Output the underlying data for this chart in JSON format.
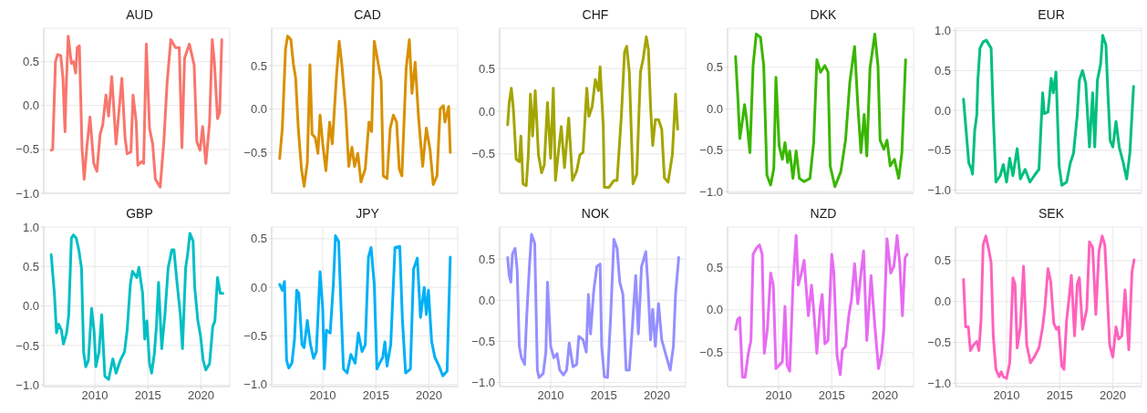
{
  "chart_data": [
    {
      "type": "line",
      "title": "AUD",
      "color": "#f8766d",
      "xlim": [
        2005.2,
        2022.7
      ],
      "xticks": [
        2010,
        2015,
        2020
      ],
      "ylim": [
        -1.0,
        0.88
      ],
      "yticks": [
        {
          "value": -1.0,
          "label": "−1.0"
        },
        {
          "value": -0.5,
          "label": "−0.5"
        },
        {
          "value": 0,
          "label": "0.0"
        },
        {
          "value": 0.5,
          "label": "0.5"
        }
      ],
      "grid": true,
      "tick_labels": "y",
      "x": [
        2005.9,
        2006.04,
        2006.3,
        2006.5,
        2006.8,
        2007.0,
        2007.2,
        2007.3,
        2007.5,
        2007.8,
        2008.0,
        2008.2,
        2008.35,
        2008.55,
        2008.8,
        2009.0,
        2009.25,
        2009.55,
        2009.9,
        2010.2,
        2010.5,
        2010.75,
        2011.05,
        2011.3,
        2011.6,
        2012.0,
        2012.55,
        2012.85,
        2013.05,
        2013.4,
        2013.6,
        2013.9,
        2014.05,
        2014.4,
        2014.6,
        2014.85,
        2015.15,
        2015.45,
        2015.7,
        2016.15,
        2016.5,
        2016.8,
        2017.15,
        2017.6,
        2017.95,
        2018.2,
        2018.45,
        2018.9,
        2019.35,
        2019.6,
        2019.9,
        2020.15,
        2020.45,
        2020.8,
        2021.05,
        2021.25,
        2021.55,
        2021.75,
        2021.95
      ],
      "values": [
        -0.51,
        -0.5,
        0.5,
        0.58,
        0.57,
        0.32,
        -0.3,
        0.17,
        0.79,
        0.48,
        0.5,
        0.37,
        0.66,
        0.68,
        -0.48,
        -0.84,
        -0.48,
        -0.13,
        -0.66,
        -0.75,
        -0.33,
        -0.22,
        0.12,
        -0.12,
        0.33,
        -0.44,
        0.31,
        -0.37,
        -0.55,
        -0.53,
        0.12,
        -0.19,
        -0.68,
        -0.64,
        -0.66,
        0.7,
        -0.26,
        -0.44,
        -0.84,
        -0.93,
        -0.41,
        0.25,
        0.75,
        0.66,
        0.66,
        -0.48,
        0.54,
        0.7,
        0.46,
        -0.41,
        -0.51,
        -0.24,
        -0.66,
        -0.19,
        0.75,
        0.5,
        -0.15,
        -0.08,
        0.75
      ]
    },
    {
      "type": "line",
      "title": "CAD",
      "color": "#d89000",
      "xlim": [
        2005.2,
        2022.7
      ],
      "xticks": [
        2010,
        2015,
        2020
      ],
      "ylim": [
        -0.97,
        0.93
      ],
      "yticks": [
        {
          "value": -0.5,
          "label": "−0.5"
        },
        {
          "value": 0,
          "label": "0.0"
        },
        {
          "value": 0.5,
          "label": "0.5"
        }
      ],
      "grid": true,
      "tick_labels": "y",
      "x": [
        2005.95,
        2006.2,
        2006.5,
        2006.7,
        2007.0,
        2007.25,
        2007.45,
        2007.7,
        2008.0,
        2008.25,
        2008.55,
        2008.8,
        2009.0,
        2009.3,
        2009.55,
        2009.75,
        2010.0,
        2010.3,
        2010.65,
        2010.9,
        2011.3,
        2011.55,
        2011.8,
        2012.15,
        2012.45,
        2012.75,
        2013.0,
        2013.3,
        2013.6,
        2014.0,
        2014.35,
        2014.6,
        2014.85,
        2015.2,
        2015.5,
        2015.7,
        2016.05,
        2016.35,
        2016.65,
        2016.95,
        2017.2,
        2017.45,
        2017.85,
        2018.15,
        2018.4,
        2018.7,
        2019.0,
        2019.4,
        2019.75,
        2020.1,
        2020.4,
        2020.75,
        2021.05,
        2021.35,
        2021.5,
        2021.85,
        2022.0
      ],
      "values": [
        -0.57,
        -0.22,
        0.69,
        0.84,
        0.8,
        0.51,
        0.36,
        -0.22,
        -0.69,
        -0.89,
        -0.62,
        0.51,
        -0.29,
        -0.33,
        -0.51,
        -0.07,
        -0.4,
        -0.71,
        -0.15,
        -0.4,
        0.39,
        0.78,
        0.51,
        0.0,
        -0.66,
        -0.44,
        -0.66,
        -0.51,
        -0.84,
        -0.69,
        -0.15,
        -0.26,
        0.78,
        0.54,
        0.33,
        -0.77,
        -0.8,
        -0.22,
        -0.07,
        -0.15,
        -0.69,
        -0.77,
        0.47,
        0.8,
        0.18,
        0.54,
        -0.07,
        -0.66,
        -0.22,
        -0.47,
        -0.87,
        -0.77,
        0.0,
        0.04,
        -0.15,
        0.03,
        -0.5
      ]
    },
    {
      "type": "line",
      "title": "CHF",
      "color": "#a3a500",
      "xlim": [
        2005.2,
        2022.7
      ],
      "xticks": [
        2010,
        2015,
        2020
      ],
      "ylim": [
        -0.96,
        0.97
      ],
      "yticks": [
        {
          "value": -0.5,
          "label": "−0.5"
        },
        {
          "value": 0,
          "label": "0.0"
        },
        {
          "value": 0.5,
          "label": "0.5"
        }
      ],
      "grid": true,
      "tick_labels": "y",
      "x": [
        2005.95,
        2006.1,
        2006.3,
        2006.5,
        2006.75,
        2007.05,
        2007.2,
        2007.4,
        2007.7,
        2007.9,
        2008.1,
        2008.3,
        2008.55,
        2008.85,
        2009.15,
        2009.4,
        2009.7,
        2010.0,
        2010.25,
        2010.45,
        2010.7,
        2011.0,
        2011.3,
        2011.7,
        2012.05,
        2012.45,
        2012.75,
        2013.05,
        2013.4,
        2013.6,
        2013.9,
        2014.2,
        2014.5,
        2014.65,
        2014.95,
        2015.05,
        2015.5,
        2015.95,
        2016.25,
        2016.65,
        2016.95,
        2017.15,
        2017.4,
        2017.75,
        2018.1,
        2018.45,
        2018.7,
        2019.0,
        2019.2,
        2019.4,
        2019.6,
        2019.85,
        2020.15,
        2020.45,
        2020.7,
        2021.05,
        2021.45,
        2021.75,
        2021.95
      ],
      "values": [
        -0.16,
        0.1,
        0.27,
        0.01,
        -0.56,
        -0.59,
        -0.29,
        -0.85,
        -0.87,
        -0.51,
        0.2,
        -0.29,
        0.24,
        -0.51,
        -0.72,
        -0.63,
        0.1,
        -0.55,
        0.27,
        -0.81,
        -0.51,
        -0.18,
        -0.66,
        -0.08,
        -0.81,
        -0.7,
        -0.51,
        -0.48,
        0.27,
        -0.06,
        0.05,
        0.37,
        0.24,
        0.52,
        -0.18,
        -0.89,
        -0.89,
        -0.81,
        -0.81,
        -0.06,
        0.69,
        0.76,
        0.46,
        -0.85,
        -0.74,
        0.46,
        0.61,
        0.87,
        0.72,
        0.05,
        -0.4,
        -0.1,
        -0.1,
        -0.21,
        -0.78,
        -0.83,
        -0.51,
        0.2,
        -0.21
      ]
    },
    {
      "type": "line",
      "title": "DKK",
      "color": "#39b600",
      "xlim": [
        2005.2,
        2022.7
      ],
      "xticks": [
        2010,
        2015,
        2020
      ],
      "ylim": [
        -1.02,
        0.97
      ],
      "yticks": [
        {
          "value": -1.0,
          "label": "−1.0"
        },
        {
          "value": -0.5,
          "label": "−0.5"
        },
        {
          "value": 0,
          "label": "0.0"
        },
        {
          "value": 0.5,
          "label": "0.5"
        }
      ],
      "grid": true,
      "tick_labels": "y",
      "x": [
        2005.95,
        2006.15,
        2006.35,
        2006.6,
        2006.8,
        2007.0,
        2007.3,
        2007.6,
        2007.9,
        2008.3,
        2008.6,
        2008.9,
        2009.25,
        2009.55,
        2009.75,
        2010.05,
        2010.35,
        2010.6,
        2010.85,
        2011.05,
        2011.35,
        2011.65,
        2011.95,
        2012.4,
        2012.95,
        2013.3,
        2013.6,
        2013.95,
        2014.35,
        2014.65,
        2014.85,
        2015.3,
        2015.85,
        2016.3,
        2016.7,
        2017.15,
        2017.45,
        2017.75,
        2018.05,
        2018.3,
        2018.6,
        2019.05,
        2019.35,
        2019.55,
        2019.9,
        2020.2,
        2020.5,
        2020.9,
        2021.3,
        2021.6,
        2021.95
      ],
      "values": [
        0.63,
        0.17,
        -0.36,
        -0.14,
        0.05,
        -0.14,
        -0.53,
        0.52,
        0.9,
        0.86,
        0.52,
        -0.8,
        -0.92,
        -0.72,
        0.38,
        -0.45,
        -0.61,
        -0.41,
        -0.65,
        -0.51,
        -0.84,
        -0.51,
        -0.84,
        -0.88,
        -0.84,
        -0.41,
        0.59,
        0.44,
        0.52,
        0.44,
        -0.69,
        -0.94,
        -0.76,
        -0.38,
        0.32,
        0.75,
        0.05,
        -0.53,
        -0.07,
        -0.57,
        0.49,
        0.9,
        0.52,
        -0.38,
        -0.49,
        -0.38,
        -0.69,
        -0.61,
        -0.84,
        -0.53,
        0.59
      ]
    },
    {
      "type": "line",
      "title": "EUR",
      "color": "#00bf7d",
      "xlim": [
        2005.2,
        2022.7
      ],
      "xticks": [
        2010,
        2015,
        2020
      ],
      "ylim": [
        -1.04,
        1.03
      ],
      "yticks": [
        {
          "value": -1.0,
          "label": "−1.0"
        },
        {
          "value": -0.5,
          "label": "−0.5"
        },
        {
          "value": 0,
          "label": "0.0"
        },
        {
          "value": 0.5,
          "label": "0.5"
        },
        {
          "value": 1.0,
          "label": "1.0"
        }
      ],
      "grid": true,
      "tick_labels": "y",
      "x": [
        2005.95,
        2006.25,
        2006.45,
        2006.7,
        2006.8,
        2007.0,
        2007.2,
        2007.3,
        2007.5,
        2007.8,
        2008.1,
        2008.55,
        2008.75,
        2009.0,
        2009.4,
        2009.7,
        2010.0,
        2010.3,
        2010.6,
        2011.0,
        2011.3,
        2011.75,
        2012.2,
        2012.6,
        2013.05,
        2013.4,
        2013.55,
        2013.9,
        2014.2,
        2014.4,
        2014.65,
        2014.95,
        2015.2,
        2015.65,
        2016.0,
        2016.3,
        2016.65,
        2016.85,
        2017.15,
        2017.45,
        2017.8,
        2018.1,
        2018.3,
        2018.55,
        2018.85,
        2019.05,
        2019.35,
        2019.55,
        2019.75,
        2020.0,
        2020.3,
        2020.6,
        2020.95,
        2021.3,
        2021.6,
        2021.95
      ],
      "values": [
        0.14,
        -0.34,
        -0.66,
        -0.74,
        -0.8,
        -0.26,
        -0.06,
        0.38,
        0.78,
        0.86,
        0.88,
        0.78,
        -0.06,
        -0.9,
        -0.82,
        -0.68,
        -0.9,
        -0.6,
        -0.82,
        -0.48,
        -0.86,
        -0.74,
        -0.9,
        -0.82,
        -0.74,
        0.22,
        -0.04,
        -0.02,
        0.4,
        0.22,
        0.48,
        -0.7,
        -0.94,
        -0.9,
        -0.66,
        -0.54,
        -0.06,
        0.38,
        0.5,
        0.34,
        -0.46,
        0.22,
        -0.46,
        0.38,
        0.58,
        0.94,
        0.82,
        0.18,
        -0.38,
        -0.46,
        -0.14,
        -0.46,
        -0.64,
        -0.86,
        -0.54,
        0.3
      ]
    },
    {
      "type": "line",
      "title": "GBP",
      "color": "#00bfc4",
      "xlim": [
        2005.2,
        2022.7
      ],
      "xticks": [
        2010,
        2015,
        2020
      ],
      "ylim": [
        -1.02,
        1.0
      ],
      "yticks": [
        {
          "value": -1.0,
          "label": "−1.0"
        },
        {
          "value": -0.5,
          "label": "−0.5"
        },
        {
          "value": 0,
          "label": "0.0"
        },
        {
          "value": 0.5,
          "label": "0.5"
        },
        {
          "value": 1.0,
          "label": "1.0"
        }
      ],
      "grid": true,
      "x": [
        2005.9,
        2006.2,
        2006.4,
        2006.6,
        2006.85,
        2007.05,
        2007.35,
        2007.55,
        2007.8,
        2008.0,
        2008.25,
        2008.5,
        2008.75,
        2008.95,
        2009.15,
        2009.4,
        2009.7,
        2009.95,
        2010.1,
        2010.4,
        2010.65,
        2010.95,
        2011.3,
        2011.7,
        2012.0,
        2012.4,
        2012.8,
        2013.05,
        2013.35,
        2013.55,
        2013.95,
        2014.15,
        2014.5,
        2014.7,
        2014.9,
        2015.15,
        2015.35,
        2015.6,
        2015.8,
        2016.0,
        2016.3,
        2016.6,
        2016.9,
        2017.25,
        2017.45,
        2017.75,
        2018.05,
        2018.25,
        2018.55,
        2018.75,
        2018.95,
        2019.25,
        2019.4,
        2019.7,
        2019.95,
        2020.2,
        2020.45,
        2020.8,
        2021.1,
        2021.3,
        2021.55,
        2021.8,
        2022.05
      ],
      "values": [
        0.65,
        0.16,
        -0.34,
        -0.23,
        -0.3,
        -0.48,
        -0.34,
        -0.11,
        0.86,
        0.9,
        0.86,
        0.71,
        0.48,
        -0.58,
        -0.77,
        -0.69,
        -0.03,
        -0.34,
        -0.77,
        -0.58,
        -0.11,
        -0.89,
        -0.93,
        -0.67,
        -0.85,
        -0.69,
        -0.58,
        -0.3,
        0.28,
        0.44,
        0.36,
        0.49,
        0.16,
        -0.42,
        -0.19,
        -0.73,
        -0.85,
        -0.61,
        -0.26,
        0.3,
        -0.54,
        -0.11,
        0.48,
        0.71,
        0.71,
        0.28,
        -0.11,
        -0.54,
        0.48,
        0.67,
        0.92,
        0.82,
        0.24,
        -0.19,
        -0.38,
        -0.69,
        -0.81,
        -0.73,
        -0.26,
        -0.19,
        0.36,
        0.16,
        0.16
      ]
    },
    {
      "type": "line",
      "title": "JPY",
      "color": "#00b0f6",
      "xlim": [
        2005.2,
        2022.7
      ],
      "xticks": [
        2010,
        2015,
        2020
      ],
      "ylim": [
        -1.02,
        0.62
      ],
      "yticks": [
        {
          "value": -1.0,
          "label": "−1.0"
        },
        {
          "value": -0.5,
          "label": "−0.5"
        },
        {
          "value": 0,
          "label": "0.0"
        },
        {
          "value": 0.5,
          "label": "0.5"
        }
      ],
      "grid": true,
      "x": [
        2005.95,
        2006.2,
        2006.4,
        2006.6,
        2006.8,
        2007.1,
        2007.35,
        2007.55,
        2007.75,
        2008.05,
        2008.25,
        2008.55,
        2008.85,
        2009.15,
        2009.4,
        2009.75,
        2010.0,
        2010.15,
        2010.35,
        2010.7,
        2011.0,
        2011.2,
        2011.5,
        2011.75,
        2011.95,
        2012.3,
        2012.65,
        2013.05,
        2013.35,
        2013.7,
        2014.0,
        2014.3,
        2014.55,
        2014.85,
        2015.1,
        2015.35,
        2015.65,
        2015.85,
        2016.05,
        2016.4,
        2016.8,
        2017.25,
        2017.5,
        2017.8,
        2018.25,
        2018.55,
        2018.9,
        2019.2,
        2019.55,
        2019.75,
        2019.95,
        2020.25,
        2020.55,
        2020.95,
        2021.3,
        2021.7,
        2022.0
      ],
      "values": [
        0.03,
        -0.03,
        0.06,
        -0.75,
        -0.83,
        -0.78,
        -0.53,
        -0.03,
        -0.06,
        -0.59,
        -0.62,
        -0.34,
        -0.59,
        -0.73,
        -0.66,
        0.16,
        -0.22,
        -0.84,
        -0.44,
        -0.47,
        0.03,
        0.53,
        0.47,
        -0.28,
        -0.84,
        -0.88,
        -0.69,
        -0.78,
        -0.47,
        -0.66,
        -0.59,
        0.31,
        0.41,
        0.03,
        -0.84,
        -0.78,
        -0.72,
        -0.56,
        -0.81,
        -0.59,
        0.41,
        0.42,
        -0.34,
        -0.88,
        -0.84,
        0.19,
        0.3,
        -0.31,
        0.0,
        -0.28,
        -0.03,
        -0.56,
        -0.72,
        -0.81,
        -0.91,
        -0.86,
        0.31
      ]
    },
    {
      "type": "line",
      "title": "NOK",
      "color": "#9590ff",
      "xlim": [
        2005.2,
        2022.7
      ],
      "xticks": [
        2010,
        2015,
        2020
      ],
      "ylim": [
        -1.05,
        0.89
      ],
      "yticks": [
        {
          "value": -1.0,
          "label": "−1.0"
        },
        {
          "value": -0.5,
          "label": "−0.5"
        },
        {
          "value": 0,
          "label": "0.0"
        },
        {
          "value": 0.5,
          "label": "0.5"
        }
      ],
      "grid": true,
      "x": [
        2005.95,
        2006.1,
        2006.25,
        2006.4,
        2006.65,
        2006.85,
        2007.05,
        2007.25,
        2007.55,
        2007.75,
        2008.0,
        2008.2,
        2008.5,
        2008.75,
        2008.9,
        2009.3,
        2009.55,
        2009.7,
        2010.0,
        2010.3,
        2010.6,
        2010.85,
        2011.2,
        2011.5,
        2011.75,
        2012.1,
        2012.45,
        2012.65,
        2013.05,
        2013.35,
        2013.55,
        2013.75,
        2014.05,
        2014.35,
        2014.65,
        2014.8,
        2015.05,
        2015.35,
        2015.65,
        2015.95,
        2016.25,
        2016.5,
        2016.8,
        2017.1,
        2017.4,
        2017.7,
        2018.0,
        2018.25,
        2018.55,
        2018.95,
        2019.15,
        2019.4,
        2019.6,
        2019.85,
        2020.15,
        2020.45,
        2020.85,
        2021.25,
        2021.55,
        2021.75,
        2022.05
      ],
      "values": [
        0.52,
        0.3,
        0.22,
        0.56,
        0.63,
        0.37,
        -0.56,
        -0.7,
        -0.78,
        -0.19,
        0.41,
        0.8,
        0.69,
        -0.85,
        -0.94,
        -0.89,
        -0.63,
        0.22,
        -0.56,
        -0.7,
        -0.65,
        -0.85,
        -0.91,
        -0.85,
        -0.52,
        -0.81,
        -0.78,
        -0.44,
        -0.48,
        -0.63,
        0.07,
        -0.41,
        0.11,
        0.41,
        0.44,
        -0.56,
        -0.93,
        -0.94,
        -0.19,
        0.74,
        0.63,
        0.22,
        0.07,
        -0.85,
        -0.85,
        -0.3,
        0.3,
        -0.41,
        0.41,
        0.59,
        0.19,
        -0.48,
        -0.11,
        -0.56,
        -0.04,
        -0.48,
        -0.67,
        -0.85,
        -0.56,
        0.07,
        0.52
      ]
    },
    {
      "type": "line",
      "title": "NZD",
      "color": "#e76bf3",
      "xlim": [
        2005.2,
        2022.7
      ],
      "xticks": [
        2010,
        2015,
        2020
      ],
      "ylim": [
        -0.9,
        0.97
      ],
      "yticks": [
        {
          "value": -0.5,
          "label": "−0.5"
        },
        {
          "value": 0,
          "label": "0.0"
        },
        {
          "value": 0.5,
          "label": "0.5"
        }
      ],
      "grid": true,
      "x": [
        2005.95,
        2006.15,
        2006.35,
        2006.6,
        2006.85,
        2007.15,
        2007.4,
        2007.6,
        2007.9,
        2008.2,
        2008.45,
        2008.65,
        2008.95,
        2009.25,
        2009.5,
        2009.75,
        2010.05,
        2010.35,
        2010.6,
        2010.8,
        2011.05,
        2011.35,
        2011.65,
        2011.85,
        2012.15,
        2012.4,
        2012.6,
        2012.8,
        2013.1,
        2013.3,
        2013.6,
        2013.9,
        2014.1,
        2014.35,
        2014.65,
        2015.0,
        2015.2,
        2015.5,
        2015.8,
        2016.0,
        2016.3,
        2016.6,
        2016.85,
        2017.15,
        2017.45,
        2017.75,
        2018.0,
        2018.3,
        2018.7,
        2019.05,
        2019.4,
        2019.7,
        2019.9,
        2020.2,
        2020.55,
        2020.85,
        2021.15,
        2021.4,
        2021.65,
        2021.9,
        2022.1
      ],
      "values": [
        -0.23,
        -0.11,
        -0.09,
        -0.79,
        -0.79,
        -0.51,
        -0.36,
        0.65,
        0.72,
        0.76,
        0.65,
        -0.51,
        -0.22,
        0.43,
        0.29,
        -0.69,
        -0.65,
        -0.61,
        0.04,
        -0.65,
        -0.72,
        0.29,
        0.87,
        0.29,
        0.43,
        0.58,
        0.25,
        -0.07,
        0.29,
        0.0,
        -0.51,
        0.0,
        0.18,
        -0.4,
        -0.36,
        0.65,
        0.43,
        -0.54,
        -0.76,
        -0.47,
        -0.43,
        -0.07,
        0.11,
        0.54,
        0.07,
        0.43,
        0.69,
        -0.36,
        0.4,
        -0.18,
        -0.69,
        -0.51,
        -0.22,
        0.83,
        0.43,
        0.51,
        0.87,
        0.54,
        -0.07,
        0.61,
        0.65
      ]
    },
    {
      "type": "line",
      "title": "SEK",
      "color": "#ff62bc",
      "xlim": [
        2005.2,
        2022.7
      ],
      "xticks": [
        2010,
        2015,
        2020
      ],
      "ylim": [
        -1.04,
        0.91
      ],
      "yticks": [
        {
          "value": -1.0,
          "label": "−1.0"
        },
        {
          "value": -0.5,
          "label": "−0.5"
        },
        {
          "value": 0,
          "label": "0.0"
        },
        {
          "value": 0.5,
          "label": "0.5"
        }
      ],
      "grid": true,
      "x": [
        2005.95,
        2006.15,
        2006.4,
        2006.6,
        2006.9,
        2007.2,
        2007.4,
        2007.6,
        2007.8,
        2008.05,
        2008.35,
        2008.55,
        2008.75,
        2009.0,
        2009.3,
        2009.5,
        2009.7,
        2010.0,
        2010.3,
        2010.6,
        2010.8,
        2011.0,
        2011.3,
        2011.6,
        2011.9,
        2012.25,
        2012.6,
        2013.05,
        2013.4,
        2013.6,
        2013.9,
        2014.15,
        2014.45,
        2014.7,
        2014.9,
        2015.2,
        2015.4,
        2015.65,
        2015.9,
        2016.1,
        2016.4,
        2016.65,
        2016.85,
        2017.15,
        2017.55,
        2017.8,
        2018.1,
        2018.4,
        2018.7,
        2019.0,
        2019.25,
        2019.5,
        2019.7,
        2020.0,
        2020.3,
        2020.55,
        2020.85,
        2021.15,
        2021.5,
        2021.8,
        2022.0
      ],
      "values": [
        0.27,
        -0.31,
        -0.31,
        -0.6,
        -0.53,
        -0.49,
        -0.6,
        -0.23,
        0.69,
        0.8,
        0.62,
        0.47,
        -0.42,
        -0.83,
        -0.92,
        -0.86,
        -0.92,
        -0.94,
        -0.75,
        0.29,
        0.21,
        -0.57,
        -0.31,
        0.43,
        -0.53,
        -0.75,
        -0.68,
        -0.57,
        -0.31,
        -0.09,
        0.4,
        0.25,
        -0.27,
        -0.34,
        -0.31,
        -0.79,
        -0.83,
        -0.23,
        0.06,
        0.32,
        -0.42,
        0.21,
        0.29,
        -0.34,
        -0.09,
        0.73,
        0.66,
        -0.16,
        0.62,
        0.8,
        0.69,
        0.03,
        -0.53,
        -0.68,
        -0.31,
        -0.46,
        -0.42,
        0.14,
        -0.59,
        0.36,
        0.51
      ]
    }
  ]
}
